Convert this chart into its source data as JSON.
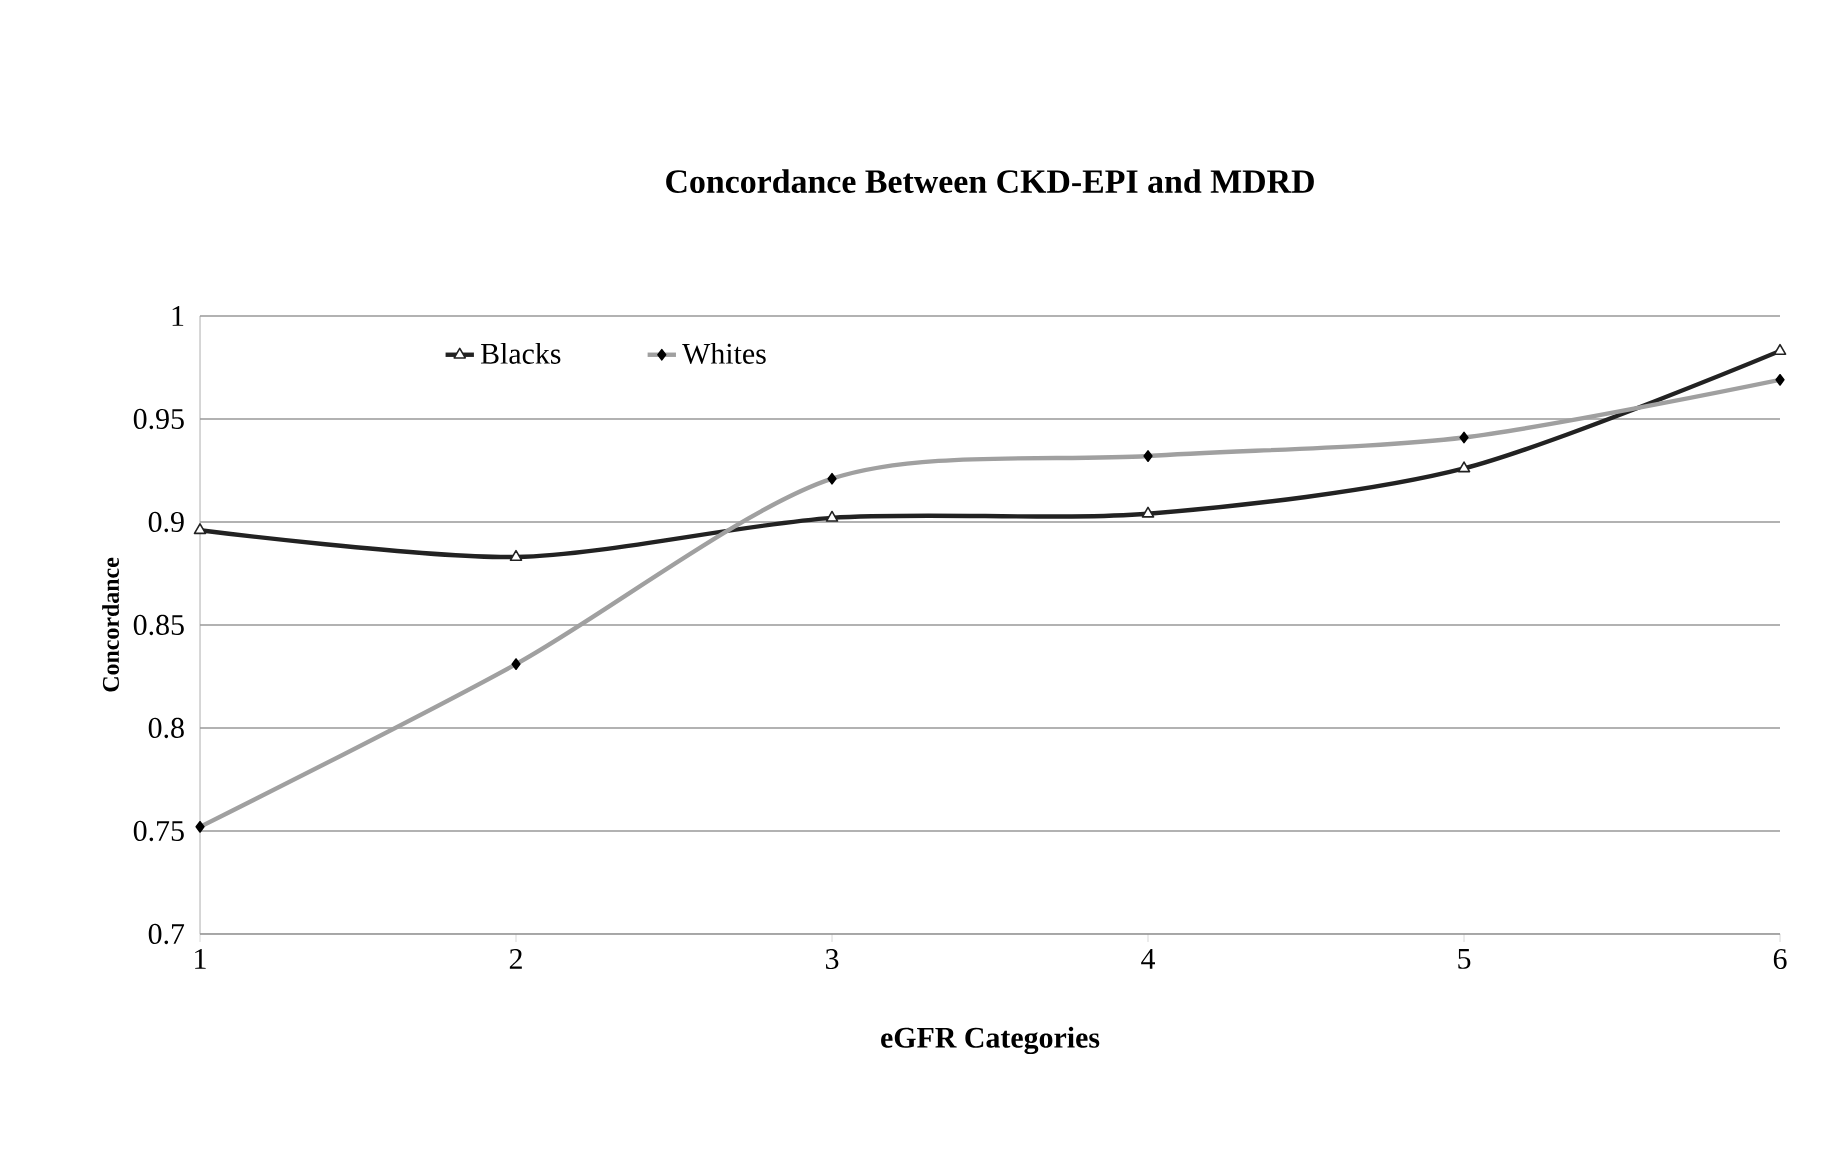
{
  "chart_data": {
    "type": "line",
    "title": "Concordance Between CKD-EPI and MDRD",
    "xlabel": "eGFR Categories",
    "ylabel": "Concordance",
    "x": [
      1,
      2,
      3,
      4,
      5,
      6
    ],
    "series": [
      {
        "name": "Blacks",
        "color": "#222222",
        "marker": "triangle",
        "values": [
          0.896,
          0.883,
          0.902,
          0.904,
          0.926,
          0.983
        ]
      },
      {
        "name": "Whites",
        "color": "#a0a0a0",
        "marker": "diamond",
        "values": [
          0.752,
          0.831,
          0.921,
          0.932,
          0.941,
          0.969
        ]
      }
    ],
    "xlim": [
      1,
      6
    ],
    "xticks": [
      1,
      2,
      3,
      4,
      5,
      6
    ],
    "ylim": [
      0.7,
      1
    ],
    "yticks": [
      0.7,
      0.75,
      0.8,
      0.85,
      0.9,
      0.95,
      1
    ],
    "grid": "y",
    "legend": "top left",
    "line_style": "solid"
  }
}
